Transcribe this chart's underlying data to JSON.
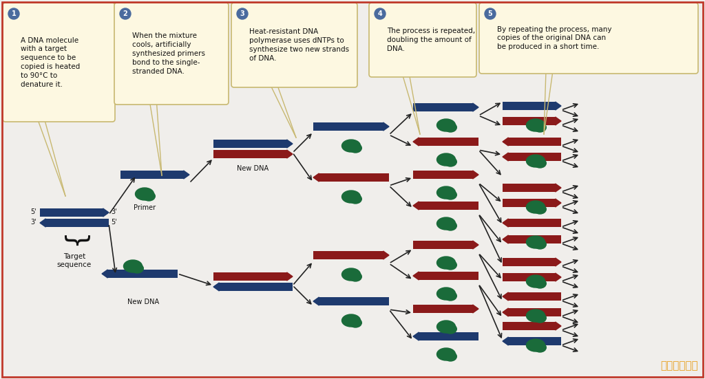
{
  "bg_color": "#f0eeeb",
  "border_color": "#c0392b",
  "blue": "#1e3a6e",
  "red": "#8b1a1a",
  "green": "#1a6b3a",
  "arrow_color": "#222222",
  "text_color": "#111111",
  "bubble_bg": "#fdf8e1",
  "bubble_border": "#c8b870",
  "watermark": "彩虹网址导航",
  "watermark_color": "#e8a020",
  "step1_text": "A DNA molecule\nwith a target\nsequence to be\ncopied is heated\nto 90°C to\ndenature it.",
  "step2_text": "When the mixture\ncools, artificially\nsynthesized primers\nbond to the single-\nstranded DNA.",
  "step3_text": "Heat-resistant DNA\npolymerase uses dNTPs to\nsynthesize two new strands\nof DNA.",
  "step4_text": "The process is repeated,\ndoubling the amount of\nDNA.",
  "step5_text": "By repeating the process, many\ncopies of the original DNA can\nbe produced in a short time."
}
